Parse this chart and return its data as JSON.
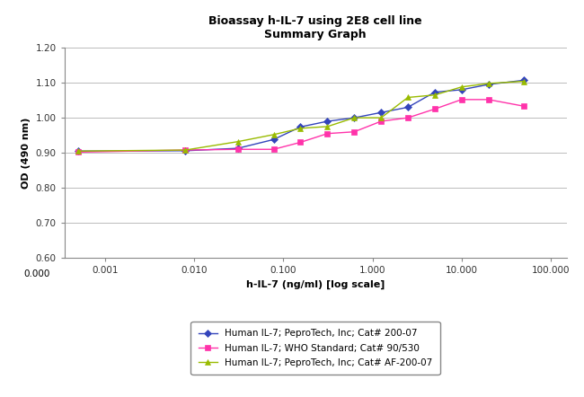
{
  "title_line1": "Bioassay h-IL-7 using 2E8 cell line",
  "title_line2": "Summary Graph",
  "xlabel": "h-IL-7 (ng/ml) [log scale]",
  "ylabel": "OD (490 nm)",
  "ylim": [
    0.6,
    1.2
  ],
  "yticks": [
    0.6,
    0.7,
    0.8,
    0.9,
    1.0,
    1.1,
    1.2
  ],
  "xlim_left": 0.00035,
  "xlim_right": 150.0,
  "series": [
    {
      "label": "Human IL-7; PeproTech, Inc; Cat# 200-07",
      "color": "#3344BB",
      "marker": "D",
      "markersize": 4,
      "x": [
        0.0005,
        0.008,
        0.031,
        0.078,
        0.156,
        0.313,
        0.625,
        1.25,
        2.5,
        5.0,
        10.0,
        20.0,
        50.0
      ],
      "y": [
        0.905,
        0.906,
        0.913,
        0.938,
        0.974,
        0.99,
        1.0,
        1.015,
        1.03,
        1.073,
        1.08,
        1.095,
        1.107
      ]
    },
    {
      "label": "Human IL-7; WHO Standard; Cat# 90/530",
      "color": "#FF33AA",
      "marker": "s",
      "markersize": 4,
      "x": [
        0.0005,
        0.008,
        0.031,
        0.078,
        0.156,
        0.313,
        0.625,
        1.25,
        2.5,
        5.0,
        10.0,
        20.0,
        50.0
      ],
      "y": [
        0.902,
        0.908,
        0.91,
        0.91,
        0.93,
        0.955,
        0.96,
        0.99,
        1.0,
        1.025,
        1.052,
        1.052,
        1.033
      ]
    },
    {
      "label": "Human IL-7; PeproTech, Inc; Cat# AF-200-07",
      "color": "#99BB00",
      "marker": "^",
      "markersize": 4,
      "x": [
        0.0005,
        0.008,
        0.031,
        0.078,
        0.156,
        0.313,
        0.625,
        1.25,
        2.5,
        5.0,
        10.0,
        20.0,
        50.0
      ],
      "y": [
        0.905,
        0.908,
        0.932,
        0.952,
        0.97,
        0.975,
        1.0,
        1.0,
        1.058,
        1.065,
        1.088,
        1.098,
        1.104
      ]
    }
  ],
  "background_color": "#ffffff",
  "grid_color": "#bbbbbb",
  "title_fontsize": 9,
  "axis_label_fontsize": 8,
  "tick_fontsize": 7.5,
  "legend_fontsize": 7.5,
  "xtick_positions": [
    0.001,
    0.01,
    0.1,
    1.0,
    10.0,
    100.0
  ],
  "xtick_labels": [
    "0.001",
    "0.010",
    "0.100",
    "1.000",
    "10.000",
    "100.000"
  ],
  "x0_label": "0.000"
}
